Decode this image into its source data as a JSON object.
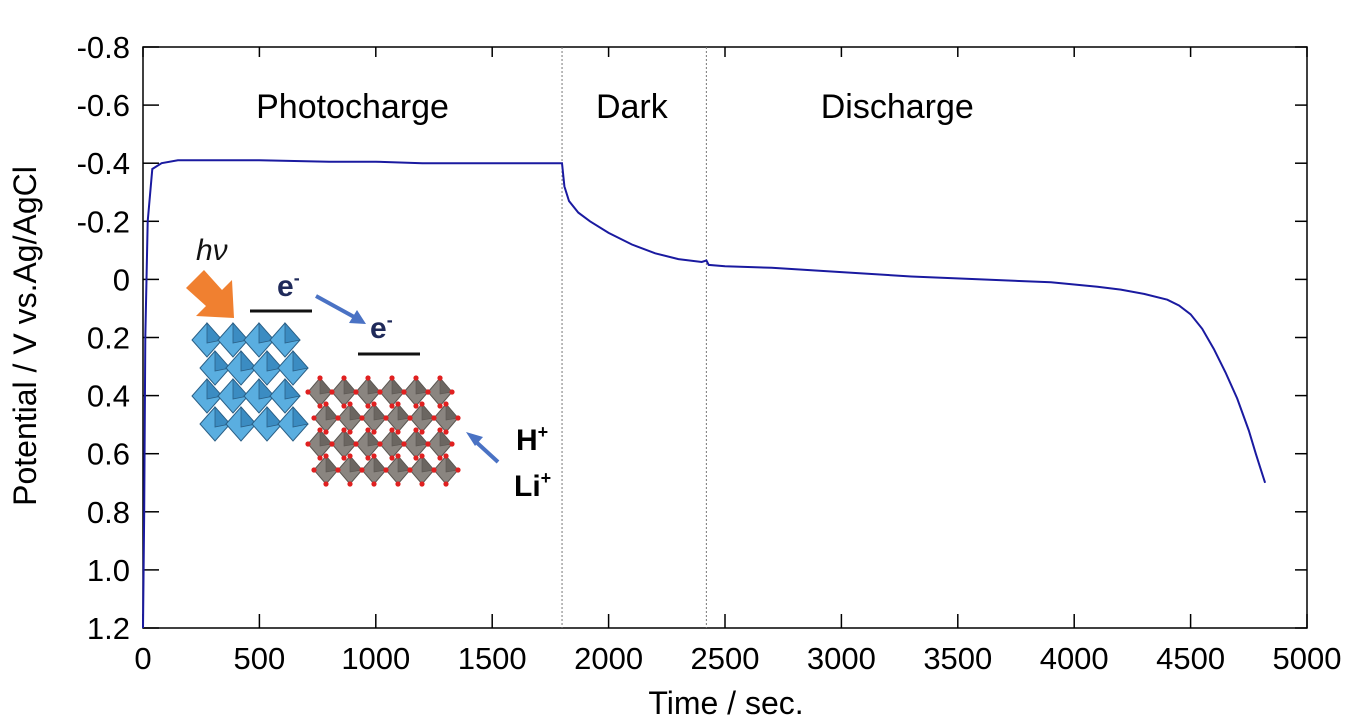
{
  "chart_data": {
    "type": "line",
    "xlabel": "Time / sec.",
    "ylabel": "Potential / V vs.Ag/AgCl",
    "xlim": [
      0,
      5000
    ],
    "ylim": [
      1.2,
      -0.8
    ],
    "y_inverted": true,
    "x_ticks": [
      0,
      500,
      1000,
      1500,
      2000,
      2500,
      3000,
      3500,
      4000,
      4500,
      5000
    ],
    "x_tick_labels": [
      "0",
      "500",
      "1000",
      "1500",
      "2000",
      "2500",
      "3000",
      "3500",
      "4000",
      "4500",
      "5000"
    ],
    "y_ticks": [
      -0.8,
      -0.6,
      -0.4,
      -0.2,
      0,
      0.2,
      0.4,
      0.6,
      0.8,
      1.0,
      1.2
    ],
    "y_tick_labels": [
      "-0.8",
      "-0.6",
      "-0.4",
      "-0.2",
      "0",
      "0.2",
      "0.4",
      "0.6",
      "0.8",
      "1.0",
      "1.2"
    ],
    "grid": false,
    "line_color": "#1a1aa0",
    "region_dividers": [
      1800,
      2420
    ],
    "regions": [
      {
        "label": "Photocharge",
        "x_center": 900
      },
      {
        "label": "Dark",
        "x_center": 2100
      },
      {
        "label": "Discharge",
        "x_center": 3240
      }
    ],
    "series": [
      {
        "x": [
          0,
          5,
          10,
          20,
          40,
          80,
          150,
          300,
          500,
          800,
          1000,
          1200,
          1500,
          1700,
          1795,
          1800,
          1810,
          1830,
          1870,
          1920,
          2000,
          2100,
          2200,
          2300,
          2400,
          2420,
          2430,
          2500,
          2700,
          3000,
          3300,
          3600,
          3900,
          4100,
          4200,
          4300,
          4400,
          4450,
          4500,
          4550,
          4600,
          4650,
          4700,
          4750,
          4780,
          4800,
          4820
        ],
        "y": [
          1.2,
          0.8,
          0.2,
          -0.2,
          -0.38,
          -0.4,
          -0.41,
          -0.41,
          -0.41,
          -0.405,
          -0.405,
          -0.4,
          -0.4,
          -0.4,
          -0.4,
          -0.4,
          -0.32,
          -0.27,
          -0.23,
          -0.2,
          -0.16,
          -0.12,
          -0.09,
          -0.07,
          -0.06,
          -0.065,
          -0.05,
          -0.045,
          -0.04,
          -0.025,
          -0.01,
          0.0,
          0.01,
          0.025,
          0.035,
          0.05,
          0.07,
          0.09,
          0.12,
          0.17,
          0.24,
          0.32,
          0.41,
          0.52,
          0.6,
          0.65,
          0.7
        ]
      }
    ]
  },
  "inset": {
    "photon_label": "hν",
    "electron_label_1": "e",
    "electron_label_2": "e",
    "electron_charge": "-",
    "ion_label_1": "H",
    "ion_label_2": "Li",
    "ion_charge": "+",
    "photon_arrow_color": "#f08030",
    "electron_arrow_color": "#4a72c4",
    "electron_text_color": "#1f2a5a",
    "crystal_1_color": "#5aaee0",
    "crystal_2_color": "#8a8580"
  }
}
